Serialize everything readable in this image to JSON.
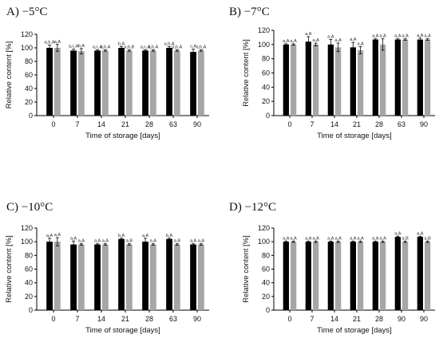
{
  "colors": {
    "series_black": "#000000",
    "series_gray": "#a6a6a6",
    "axis": "#000000"
  },
  "chart_data": [
    {
      "type": "bar",
      "panel_label": "A)   −5°C",
      "xlabel": "Time of storage [days]",
      "ylabel": "Relative content [%]",
      "ylim": [
        0,
        120
      ],
      "yticks": [
        "0",
        "20",
        "40",
        "60",
        "80",
        "100",
        "120"
      ],
      "categories": [
        "0",
        "7",
        "14",
        "21",
        "28",
        "63",
        "90"
      ],
      "series": [
        {
          "values": [
            100,
            96,
            96,
            100,
            96,
            100,
            94
          ],
          "errors": [
            4,
            2,
            1,
            2,
            1,
            2,
            4
          ],
          "labels": [
            "a,b,A",
            "a,c,A",
            "a,c,A",
            "b,A",
            "a,c,A",
            "a,b,A",
            "c,A"
          ]
        },
        {
          "values": [
            100,
            95,
            96,
            96,
            96,
            96,
            96
          ],
          "errors": [
            5,
            4,
            1,
            1,
            1,
            1,
            1
          ],
          "labels": [
            "a,A",
            "b,A",
            "a,b,A",
            "a,b,B",
            "a,b,A",
            "a,b,A",
            "a,b,A"
          ]
        }
      ],
      "grid": false,
      "legend": "none"
    },
    {
      "type": "bar",
      "panel_label": "B)   −7°C",
      "xlabel": "Time of storage [days]",
      "ylabel": "Relative content [%]",
      "ylim": [
        0,
        120
      ],
      "yticks": [
        "0",
        "20",
        "40",
        "60",
        "80",
        "100",
        "120"
      ],
      "categories": [
        "0",
        "7",
        "14",
        "21",
        "28",
        "63",
        "90"
      ],
      "series": [
        {
          "values": [
            100,
            104,
            100,
            96,
            107,
            107,
            107
          ],
          "errors": [
            1,
            7,
            7,
            7,
            1,
            1,
            2
          ],
          "labels": [
            "a,A",
            "a,A",
            "a,A",
            "a,A",
            "a,A",
            "a,A",
            "a,A"
          ]
        },
        {
          "values": [
            100,
            100,
            96,
            92,
            100,
            107,
            107
          ],
          "errors": [
            1,
            2,
            6,
            5,
            8,
            1,
            1
          ],
          "labels": [
            "a,A",
            "a,A",
            "a,A",
            "a,A",
            "a,A",
            "a,A",
            "a,A"
          ]
        }
      ],
      "grid": false,
      "legend": "none"
    },
    {
      "type": "bar",
      "panel_label": "C)   −10°C",
      "xlabel": "Time of storage [days]",
      "ylabel": "Relative content [%]",
      "ylim": [
        0,
        120
      ],
      "yticks": [
        "0",
        "20",
        "40",
        "60",
        "80",
        "100",
        "120"
      ],
      "categories": [
        "0",
        "7",
        "14",
        "21",
        "28",
        "63",
        "90"
      ],
      "series": [
        {
          "values": [
            100,
            96,
            96,
            104,
            100,
            104,
            96
          ],
          "errors": [
            5,
            5,
            1,
            1,
            5,
            1,
            1
          ],
          "labels": [
            "a,A",
            "a,A",
            "a,A",
            "b,A",
            "a,A",
            "b,A",
            "a,A"
          ]
        },
        {
          "values": [
            100,
            96,
            96,
            96,
            96,
            96,
            96
          ],
          "errors": [
            6,
            1,
            1,
            1,
            1,
            1,
            1
          ],
          "labels": [
            "a,A",
            "a,A",
            "a,A",
            "a,B",
            "a,A",
            "a,B",
            "a,A"
          ]
        }
      ],
      "grid": false,
      "legend": "none"
    },
    {
      "type": "bar",
      "panel_label": "D)   −12°C",
      "xlabel": "Time of storage [days]",
      "ylabel": "Relative content [%]",
      "ylim": [
        0,
        120
      ],
      "yticks": [
        "0",
        "20",
        "40",
        "60",
        "80",
        "100",
        "120"
      ],
      "categories": [
        "0",
        "7",
        "14",
        "21",
        "28",
        "90",
        "90"
      ],
      "series": [
        {
          "values": [
            100,
            100,
            100,
            100,
            100,
            107,
            107
          ],
          "errors": [
            1,
            1,
            1,
            1,
            1,
            1,
            1
          ],
          "labels": [
            "a,A",
            "a,A",
            "a,A",
            "a,A",
            "a,A",
            "a,A",
            "a,A"
          ]
        },
        {
          "values": [
            100,
            100,
            100,
            100,
            100,
            100,
            100
          ],
          "errors": [
            1,
            1,
            1,
            1,
            1,
            1,
            1
          ],
          "labels": [
            "a,A",
            "a,A",
            "a,A",
            "a,A",
            "a,A",
            "a,B",
            "a,B"
          ]
        }
      ],
      "grid": false,
      "legend": "none"
    }
  ]
}
